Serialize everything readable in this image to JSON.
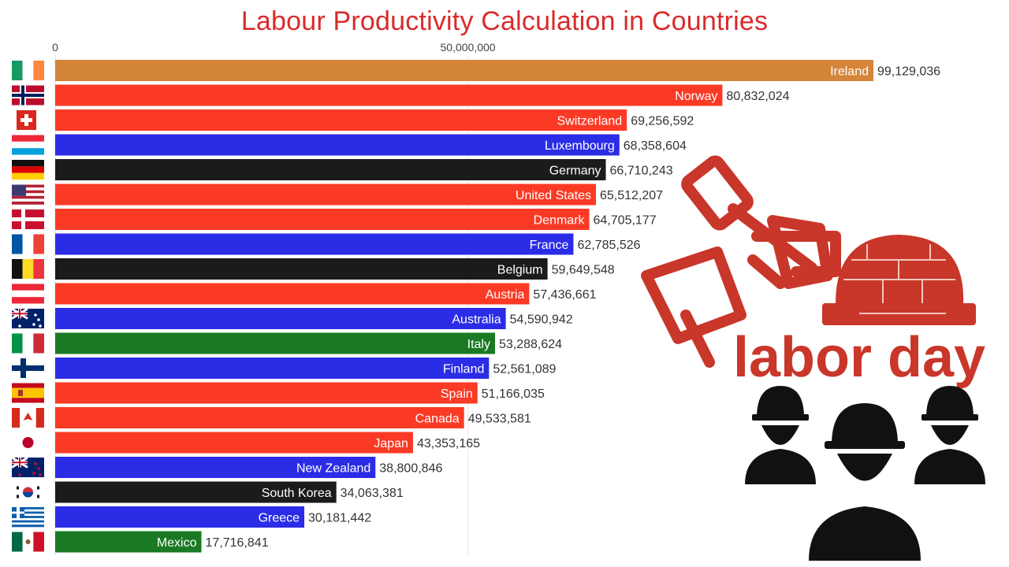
{
  "chart_data": {
    "type": "bar",
    "orientation": "horizontal",
    "title": "Labour Productivity Calculation in Countries",
    "xlabel": "",
    "ylabel": "",
    "xlim": [
      0,
      112000000
    ],
    "ticks": [
      {
        "value": 0,
        "label": "0"
      },
      {
        "value": 50000000,
        "label": "50,000,000"
      }
    ],
    "grid": true,
    "categories": [
      "Ireland",
      "Norway",
      "Switzerland",
      "Luxembourg",
      "Germany",
      "United States",
      "Denmark",
      "France",
      "Belgium",
      "Austria",
      "Australia",
      "Italy",
      "Finland",
      "Spain",
      "Canada",
      "Japan",
      "New Zealand",
      "South Korea",
      "Greece",
      "Mexico"
    ],
    "values": [
      99129036,
      80832024,
      69256592,
      68358604,
      66710243,
      65512207,
      64705177,
      62785526,
      59649548,
      57436661,
      54590942,
      53288624,
      52561089,
      51166035,
      49533581,
      43353165,
      38800846,
      34063381,
      30181442,
      17716841
    ],
    "value_labels": [
      "99,129,036",
      "80,832,024",
      "69,256,592",
      "68,358,604",
      "66,710,243",
      "65,512,207",
      "64,705,177",
      "62,785,526",
      "59,649,548",
      "57,436,661",
      "54,590,942",
      "53,288,624",
      "52,561,089",
      "51,166,035",
      "49,533,581",
      "43,353,165",
      "38,800,846",
      "34,063,381",
      "30,181,442",
      "17,716,841"
    ],
    "colors": [
      "#d4853a",
      "#fb3a25",
      "#fb3a25",
      "#2b2de6",
      "#1b1b1b",
      "#fb3a25",
      "#fb3a25",
      "#2b2de6",
      "#1b1b1b",
      "#fb3a25",
      "#2b2de6",
      "#1a7a24",
      "#2b2de6",
      "#fb3a25",
      "#fb3a25",
      "#fb3a25",
      "#2b2de6",
      "#1b1b1b",
      "#2b2de6",
      "#1a7a24"
    ],
    "flag_icons": [
      "ireland-flag-icon",
      "norway-flag-icon",
      "switzerland-flag-icon",
      "luxembourg-flag-icon",
      "germany-flag-icon",
      "united-states-flag-icon",
      "denmark-flag-icon",
      "france-flag-icon",
      "belgium-flag-icon",
      "austria-flag-icon",
      "australia-flag-icon",
      "italy-flag-icon",
      "finland-flag-icon",
      "spain-flag-icon",
      "canada-flag-icon",
      "japan-flag-icon",
      "new-zealand-flag-icon",
      "south-korea-flag-icon",
      "greece-flag-icon",
      "mexico-flag-icon"
    ]
  },
  "decoration": {
    "text": "labor day",
    "accent_color": "#c9362a",
    "icons": [
      "hammer-hand-icon",
      "hard-hat-icon",
      "workers-group-icon"
    ]
  }
}
